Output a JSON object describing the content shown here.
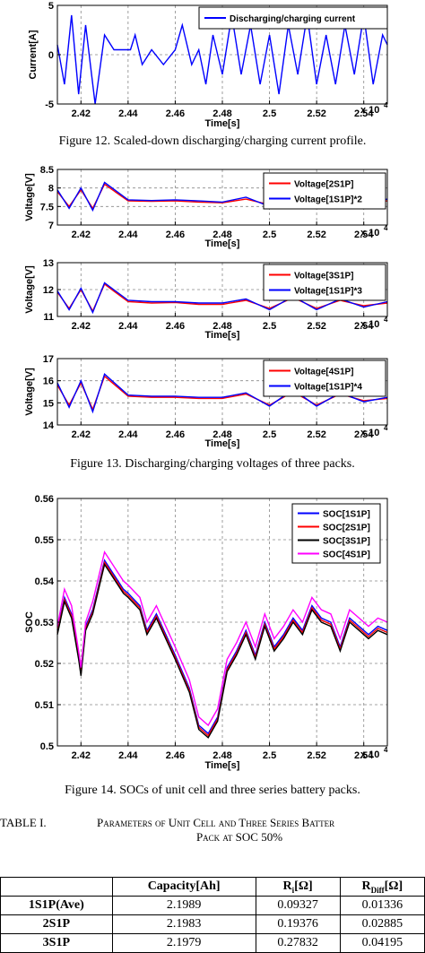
{
  "chart_data": [
    {
      "type": "line",
      "ylabel": "Current[A]",
      "xlabel": "Time[s]",
      "x_multiplier": "x 10",
      "x_multiplier_exp": "4",
      "xlim": [
        2.41,
        2.55
      ],
      "ylim": [
        -5,
        5
      ],
      "xticks": [
        "2.42",
        "2.44",
        "2.46",
        "2.48",
        "2.5",
        "2.52",
        "2.54"
      ],
      "yticks": [
        "-5",
        "0",
        "5"
      ],
      "series": [
        {
          "name": "Discharging/charging current",
          "color": "#0000ff",
          "x": [
            2.41,
            2.413,
            2.416,
            2.419,
            2.422,
            2.426,
            2.43,
            2.434,
            2.438,
            2.441,
            2.443,
            2.446,
            2.45,
            2.455,
            2.46,
            2.463,
            2.467,
            2.47,
            2.473,
            2.476,
            2.48,
            2.484,
            2.488,
            2.492,
            2.496,
            2.5,
            2.504,
            2.508,
            2.512,
            2.516,
            2.52,
            2.524,
            2.528,
            2.532,
            2.536,
            2.54,
            2.544,
            2.548,
            2.55
          ],
          "y": [
            1,
            -3,
            4,
            -4,
            3,
            -5,
            2,
            0.5,
            0.5,
            0.5,
            2,
            -1,
            0.5,
            -1,
            0.5,
            3,
            -1,
            0.5,
            -3,
            2,
            -2,
            4,
            -2,
            3,
            -3,
            2,
            -4,
            3,
            -2,
            4,
            -3,
            2,
            -3,
            3,
            -2,
            4,
            -3,
            2,
            1
          ]
        }
      ]
    },
    {
      "type": "line",
      "ylabel": "Voltage[V]",
      "xlabel": "Time[s]",
      "x_multiplier": "x 10",
      "x_multiplier_exp": "4",
      "xlim": [
        2.41,
        2.55
      ],
      "ylim": [
        7,
        8.5
      ],
      "xticks": [
        "2.42",
        "2.44",
        "2.46",
        "2.48",
        "2.5",
        "2.52",
        "2.54"
      ],
      "yticks": [
        "7",
        "7.5",
        "8",
        "8.5"
      ],
      "series": [
        {
          "name": "Voltage[2S1P]",
          "color": "#ff0000",
          "x": [
            2.41,
            2.415,
            2.42,
            2.425,
            2.43,
            2.44,
            2.45,
            2.46,
            2.47,
            2.48,
            2.49,
            2.5,
            2.51,
            2.52,
            2.53,
            2.54,
            2.55
          ],
          "y": [
            7.9,
            7.5,
            7.95,
            7.45,
            8.1,
            7.65,
            7.64,
            7.65,
            7.62,
            7.6,
            7.7,
            7.55,
            7.75,
            7.5,
            7.7,
            7.6,
            7.65
          ]
        },
        {
          "name": "Voltage[1S1P]*2",
          "color": "#0000ff",
          "x": [
            2.41,
            2.415,
            2.42,
            2.425,
            2.43,
            2.44,
            2.45,
            2.46,
            2.47,
            2.48,
            2.49,
            2.5,
            2.51,
            2.52,
            2.53,
            2.54,
            2.55
          ],
          "y": [
            7.95,
            7.45,
            8.0,
            7.4,
            8.15,
            7.68,
            7.66,
            7.68,
            7.65,
            7.62,
            7.75,
            7.5,
            7.8,
            7.45,
            7.75,
            7.55,
            7.7
          ]
        }
      ]
    },
    {
      "type": "line",
      "ylabel": "Voltage[V]",
      "xlabel": "Time[s]",
      "x_multiplier": "x 10",
      "x_multiplier_exp": "4",
      "xlim": [
        2.41,
        2.55
      ],
      "ylim": [
        11,
        13
      ],
      "xticks": [
        "2.42",
        "2.44",
        "2.46",
        "2.48",
        "2.5",
        "2.52",
        "2.54"
      ],
      "yticks": [
        "11",
        "12",
        "13"
      ],
      "series": [
        {
          "name": "Voltage[3S1P]",
          "color": "#ff0000",
          "x": [
            2.41,
            2.415,
            2.42,
            2.425,
            2.43,
            2.44,
            2.45,
            2.46,
            2.47,
            2.48,
            2.49,
            2.5,
            2.51,
            2.52,
            2.53,
            2.54,
            2.55
          ],
          "y": [
            11.9,
            11.3,
            12.0,
            11.2,
            12.2,
            11.55,
            11.5,
            11.52,
            11.45,
            11.45,
            11.6,
            11.3,
            11.7,
            11.3,
            11.6,
            11.4,
            11.5
          ]
        },
        {
          "name": "Voltage[1S1P]*3",
          "color": "#0000ff",
          "x": [
            2.41,
            2.415,
            2.42,
            2.425,
            2.43,
            2.44,
            2.45,
            2.46,
            2.47,
            2.48,
            2.49,
            2.5,
            2.51,
            2.52,
            2.53,
            2.54,
            2.55
          ],
          "y": [
            11.95,
            11.25,
            12.05,
            11.15,
            12.25,
            11.6,
            11.55,
            11.55,
            11.5,
            11.5,
            11.65,
            11.25,
            11.75,
            11.25,
            11.65,
            11.35,
            11.55
          ]
        }
      ]
    },
    {
      "type": "line",
      "ylabel": "Voltage[V]",
      "xlabel": "Time[s]",
      "x_multiplier": "x 10",
      "x_multiplier_exp": "4",
      "xlim": [
        2.41,
        2.55
      ],
      "ylim": [
        14,
        17
      ],
      "xticks": [
        "2.42",
        "2.44",
        "2.46",
        "2.48",
        "2.5",
        "2.52",
        "2.54"
      ],
      "yticks": [
        "14",
        "15",
        "16",
        "17"
      ],
      "series": [
        {
          "name": "Voltage[4S1P]",
          "color": "#ff0000",
          "x": [
            2.41,
            2.415,
            2.42,
            2.425,
            2.43,
            2.44,
            2.45,
            2.46,
            2.47,
            2.48,
            2.49,
            2.5,
            2.51,
            2.52,
            2.53,
            2.54,
            2.55
          ],
          "y": [
            15.8,
            14.9,
            15.9,
            14.7,
            16.2,
            15.3,
            15.25,
            15.25,
            15.2,
            15.2,
            15.4,
            14.9,
            15.5,
            14.9,
            15.4,
            15.1,
            15.2
          ]
        },
        {
          "name": "Voltage[1S1P]*4",
          "color": "#0000ff",
          "x": [
            2.41,
            2.415,
            2.42,
            2.425,
            2.43,
            2.44,
            2.45,
            2.46,
            2.47,
            2.48,
            2.49,
            2.5,
            2.51,
            2.52,
            2.53,
            2.54,
            2.55
          ],
          "y": [
            15.9,
            14.8,
            16.0,
            14.6,
            16.3,
            15.35,
            15.3,
            15.3,
            15.25,
            15.25,
            15.45,
            14.85,
            15.6,
            14.85,
            15.45,
            15.05,
            15.25
          ]
        }
      ]
    },
    {
      "type": "line",
      "ylabel": "SOC",
      "xlabel": "Time[s]",
      "x_multiplier": "x 10",
      "x_multiplier_exp": "4",
      "xlim": [
        2.41,
        2.55
      ],
      "ylim": [
        0.5,
        0.56
      ],
      "xticks": [
        "2.42",
        "2.44",
        "2.46",
        "2.48",
        "2.5",
        "2.52",
        "2.54"
      ],
      "yticks": [
        "0.5",
        "0.51",
        "0.52",
        "0.53",
        "0.54",
        "0.55",
        "0.56"
      ],
      "series": [
        {
          "name": "SOC[1S1P]",
          "color": "#0000ff",
          "x": [
            2.41,
            2.413,
            2.416,
            2.419,
            2.42,
            2.422,
            2.425,
            2.43,
            2.438,
            2.44,
            2.445,
            2.448,
            2.452,
            2.46,
            2.466,
            2.47,
            2.474,
            2.478,
            2.482,
            2.486,
            2.49,
            2.494,
            2.498,
            2.502,
            2.506,
            2.51,
            2.514,
            2.518,
            2.522,
            2.526,
            2.53,
            2.534,
            2.538,
            2.542,
            2.546,
            2.55
          ],
          "y": [
            0.528,
            0.536,
            0.532,
            0.522,
            0.518,
            0.529,
            0.533,
            0.545,
            0.538,
            0.537,
            0.534,
            0.528,
            0.532,
            0.522,
            0.514,
            0.505,
            0.503,
            0.507,
            0.519,
            0.523,
            0.528,
            0.522,
            0.53,
            0.524,
            0.527,
            0.531,
            0.528,
            0.534,
            0.531,
            0.53,
            0.524,
            0.531,
            0.529,
            0.527,
            0.529,
            0.528
          ]
        },
        {
          "name": "SOC[2S1P]",
          "color": "#ff0000",
          "x": [
            2.41,
            2.413,
            2.416,
            2.419,
            2.42,
            2.422,
            2.425,
            2.43,
            2.438,
            2.44,
            2.445,
            2.448,
            2.452,
            2.46,
            2.466,
            2.47,
            2.474,
            2.478,
            2.482,
            2.486,
            2.49,
            2.494,
            2.498,
            2.502,
            2.506,
            2.51,
            2.514,
            2.518,
            2.522,
            2.526,
            2.53,
            2.534,
            2.538,
            2.542,
            2.546,
            2.55
          ],
          "y": [
            0.5275,
            0.5355,
            0.5315,
            0.5215,
            0.5175,
            0.5285,
            0.5325,
            0.5445,
            0.5375,
            0.5365,
            0.5335,
            0.5275,
            0.5315,
            0.5215,
            0.5135,
            0.5045,
            0.5025,
            0.5065,
            0.5185,
            0.5225,
            0.5275,
            0.5215,
            0.5295,
            0.5235,
            0.5265,
            0.5305,
            0.5275,
            0.5335,
            0.5305,
            0.5295,
            0.5235,
            0.5305,
            0.5285,
            0.5265,
            0.5285,
            0.5275
          ]
        },
        {
          "name": "SOC[3S1P]",
          "color": "#000000",
          "x": [
            2.41,
            2.413,
            2.416,
            2.419,
            2.42,
            2.422,
            2.425,
            2.43,
            2.438,
            2.44,
            2.445,
            2.448,
            2.452,
            2.46,
            2.466,
            2.47,
            2.474,
            2.478,
            2.482,
            2.486,
            2.49,
            2.494,
            2.498,
            2.502,
            2.506,
            2.51,
            2.514,
            2.518,
            2.522,
            2.526,
            2.53,
            2.534,
            2.538,
            2.542,
            2.546,
            2.55
          ],
          "y": [
            0.527,
            0.535,
            0.531,
            0.521,
            0.517,
            0.528,
            0.532,
            0.544,
            0.537,
            0.536,
            0.533,
            0.527,
            0.531,
            0.521,
            0.513,
            0.504,
            0.502,
            0.506,
            0.518,
            0.522,
            0.527,
            0.521,
            0.529,
            0.523,
            0.526,
            0.53,
            0.527,
            0.533,
            0.53,
            0.529,
            0.523,
            0.53,
            0.528,
            0.526,
            0.528,
            0.527
          ]
        },
        {
          "name": "SOC[4S1P]",
          "color": "#ff00ff",
          "x": [
            2.41,
            2.413,
            2.416,
            2.419,
            2.42,
            2.422,
            2.425,
            2.43,
            2.438,
            2.44,
            2.445,
            2.448,
            2.452,
            2.46,
            2.466,
            2.47,
            2.474,
            2.478,
            2.482,
            2.486,
            2.49,
            2.494,
            2.498,
            2.502,
            2.506,
            2.51,
            2.514,
            2.518,
            2.522,
            2.526,
            2.53,
            2.534,
            2.538,
            2.542,
            2.546,
            2.55
          ],
          "y": [
            0.529,
            0.538,
            0.534,
            0.523,
            0.519,
            0.53,
            0.535,
            0.547,
            0.54,
            0.539,
            0.536,
            0.53,
            0.534,
            0.524,
            0.516,
            0.507,
            0.505,
            0.509,
            0.521,
            0.525,
            0.53,
            0.524,
            0.532,
            0.526,
            0.529,
            0.533,
            0.53,
            0.536,
            0.533,
            0.532,
            0.526,
            0.533,
            0.531,
            0.529,
            0.531,
            0.53
          ]
        }
      ]
    }
  ],
  "captions": {
    "fig12": "Figure 12.   Scaled-down discharging/charging current profile.",
    "fig13": "Figure 13.   Discharging/charging voltages of three packs.",
    "fig14": "Figure 14.   SOCs of unit cell and three series battery packs."
  },
  "table": {
    "label": "TABLE I.",
    "title_line1": "Parameters of Unit Cell and Three Series Batter",
    "title_line2": "Pack at SOC 50%",
    "headers": [
      "",
      "Capacity[Ah]",
      "Ri[Ω]",
      "RDiff[Ω]"
    ],
    "header_ri_main": "R",
    "header_ri_sub": "i",
    "header_ri_unit": "[Ω]",
    "header_rd_main": "R",
    "header_rd_sub": "Diff",
    "header_rd_unit": "[Ω]",
    "rows": [
      {
        "label": "1S1P(Ave)",
        "capacity": "2.1989",
        "ri": "0.09327",
        "rdiff": "0.01336"
      },
      {
        "label": "2S1P",
        "capacity": "2.1983",
        "ri": "0.19376",
        "rdiff": "0.02885"
      },
      {
        "label": "3S1P",
        "capacity": "2.1979",
        "ri": "0.27832",
        "rdiff": "0.04195"
      }
    ]
  }
}
